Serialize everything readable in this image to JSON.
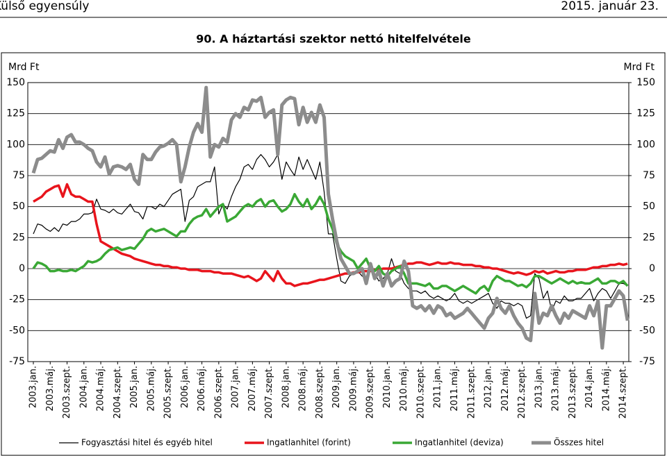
{
  "header": {
    "section": "Külső egyensúly",
    "date": "2015. január 23."
  },
  "chart_data": {
    "type": "line",
    "title": "90. A háztartási szektor nettó hitelfelvétele",
    "y_label": "Mrd Ft",
    "y2_label": "Mrd Ft",
    "categories": [
      "2003.jan.",
      null,
      null,
      null,
      "2003.máj.",
      null,
      null,
      null,
      "2003.szept.",
      null,
      null,
      null,
      "2004.jan.",
      null,
      null,
      null,
      "2004.máj.",
      null,
      null,
      null,
      "2004.szept.",
      null,
      null,
      null,
      "2005.jan.",
      null,
      null,
      null,
      "2005.máj.",
      null,
      null,
      null,
      "2005.szept.",
      null,
      null,
      null,
      "2006.jan.",
      null,
      null,
      null,
      "2006.máj.",
      null,
      null,
      null,
      "2006.szept.",
      null,
      null,
      null,
      "2007.jan.",
      null,
      null,
      null,
      "2007.máj.",
      null,
      null,
      null,
      "2007.szept.",
      null,
      null,
      null,
      "2008.jan.",
      null,
      null,
      null,
      "2008.máj.",
      null,
      null,
      null,
      "2008.szept.",
      null,
      null,
      null,
      "2009.jan.",
      null,
      null,
      null,
      "2009.máj.",
      null,
      null,
      null,
      "2009.szept.",
      null,
      null,
      null,
      "2010.jan.",
      null,
      null,
      null,
      "2010.máj.",
      null,
      null,
      null,
      "2010.szept.",
      null,
      null,
      null,
      "2011.jan.",
      null,
      null,
      null,
      "2011.máj.",
      null,
      null,
      null,
      "2011.szept.",
      null,
      null,
      null,
      "2012.jan.",
      null,
      null,
      null,
      "2012.máj.",
      null,
      null,
      null,
      "2012.szept.",
      null,
      null,
      null,
      "2013.jan.",
      null,
      null,
      null,
      "2013.máj.",
      null,
      null,
      null,
      "2013.szept.",
      null,
      null,
      null,
      "2014.jan.",
      null,
      null,
      null,
      "2014.máj.",
      null,
      null,
      null,
      "2014.szept.",
      null
    ],
    "series": [
      {
        "name": "Fogyasztási hitel és egyéb hitel",
        "color": "#000000",
        "width": 1.2,
        "values": [
          28,
          36,
          35,
          32,
          30,
          33,
          30,
          36,
          35,
          38,
          38,
          40,
          44,
          44,
          45,
          56,
          48,
          47,
          45,
          48,
          45,
          44,
          48,
          52,
          46,
          45,
          40,
          50,
          50,
          48,
          52,
          50,
          55,
          60,
          62,
          64,
          38,
          55,
          58,
          66,
          68,
          70,
          70,
          82,
          44,
          52,
          48,
          58,
          66,
          72,
          82,
          84,
          80,
          88,
          92,
          88,
          82,
          86,
          92,
          72,
          86,
          80,
          75,
          90,
          80,
          88,
          80,
          72,
          86,
          62,
          28,
          28,
          8,
          -10,
          -12,
          -6,
          -4,
          -2,
          -6,
          -8,
          0,
          -4,
          -10,
          -8,
          -4,
          8,
          -2,
          -4,
          -12,
          -16,
          -18,
          -18,
          -20,
          -18,
          -22,
          -24,
          -22,
          -24,
          -26,
          -24,
          -20,
          -26,
          -28,
          -26,
          -28,
          -26,
          -24,
          -22,
          -20,
          -28,
          -32,
          -26,
          -28,
          -28,
          -30,
          -28,
          -30,
          -40,
          -38,
          -4,
          -8,
          -24,
          -18,
          -34,
          -26,
          -28,
          -22,
          -26,
          -26,
          -24,
          -24,
          -20,
          -16,
          -26,
          -20,
          -16,
          -18,
          -24,
          -18,
          -12,
          -12,
          -14
        ]
      },
      {
        "name": "Ingatlanhitel (forint)",
        "color": "#e8141c",
        "width": 3.5,
        "values": [
          54,
          56,
          58,
          62,
          64,
          66,
          67,
          58,
          68,
          60,
          58,
          58,
          56,
          54,
          54,
          36,
          22,
          20,
          18,
          16,
          14,
          12,
          11,
          10,
          8,
          7,
          6,
          5,
          4,
          3,
          3,
          2,
          2,
          1,
          1,
          0,
          0,
          -1,
          -1,
          -1,
          -2,
          -2,
          -2,
          -3,
          -3,
          -4,
          -4,
          -4,
          -5,
          -6,
          -7,
          -6,
          -8,
          -10,
          -8,
          -2,
          -6,
          -10,
          -2,
          -8,
          -12,
          -12,
          -14,
          -13,
          -12,
          -12,
          -11,
          -10,
          -9,
          -9,
          -8,
          -7,
          -6,
          -5,
          -4,
          -4,
          -3,
          -3,
          -2,
          -2,
          -2,
          -1,
          -1,
          0,
          0,
          0,
          1,
          2,
          3,
          4,
          4,
          5,
          5,
          4,
          3,
          4,
          5,
          4,
          4,
          5,
          4,
          4,
          3,
          3,
          3,
          2,
          2,
          1,
          1,
          0,
          0,
          -1,
          -2,
          -3,
          -4,
          -3,
          -4,
          -5,
          -4,
          -2,
          -3,
          -2,
          -4,
          -3,
          -2,
          -3,
          -3,
          -2,
          -2,
          -1,
          -1,
          -1,
          0,
          1,
          1,
          2,
          2,
          3,
          3,
          4,
          3,
          4
        ]
      },
      {
        "name": "Ingatlanhitel (deviza)",
        "color": "#3aa835",
        "width": 3.5,
        "values": [
          0,
          5,
          4,
          2,
          -2,
          -2,
          -1,
          -2,
          -2,
          -1,
          -2,
          0,
          2,
          6,
          5,
          6,
          8,
          12,
          15,
          16,
          17,
          15,
          16,
          17,
          16,
          20,
          24,
          30,
          32,
          30,
          31,
          32,
          30,
          28,
          26,
          30,
          30,
          36,
          40,
          42,
          43,
          48,
          42,
          46,
          50,
          52,
          38,
          40,
          42,
          46,
          50,
          52,
          50,
          54,
          56,
          50,
          54,
          55,
          50,
          46,
          48,
          52,
          60,
          54,
          50,
          56,
          48,
          52,
          58,
          52,
          40,
          32,
          20,
          14,
          10,
          8,
          6,
          0,
          4,
          8,
          0,
          -2,
          2,
          -4,
          -6,
          -2,
          0,
          2,
          -4,
          -12,
          -12,
          -12,
          -13,
          -14,
          -12,
          -16,
          -16,
          -14,
          -14,
          -16,
          -18,
          -16,
          -14,
          -16,
          -18,
          -20,
          -16,
          -14,
          -18,
          -10,
          -6,
          -8,
          -10,
          -10,
          -12,
          -14,
          -13,
          -15,
          -12,
          -6,
          -6,
          -8,
          -10,
          -12,
          -10,
          -8,
          -10,
          -12,
          -10,
          -12,
          -11,
          -12,
          -12,
          -10,
          -8,
          -12,
          -12,
          -10,
          -10,
          -12,
          -10,
          -14
        ]
      },
      {
        "name": "Összes hitel",
        "color": "#8c8c8c",
        "width": 5,
        "values": [
          77,
          88,
          89,
          92,
          95,
          94,
          104,
          97,
          106,
          108,
          102,
          102,
          100,
          97,
          95,
          86,
          82,
          90,
          76,
          82,
          83,
          82,
          80,
          84,
          72,
          68,
          92,
          88,
          88,
          94,
          98,
          99,
          101,
          104,
          100,
          70,
          82,
          98,
          110,
          117,
          110,
          146,
          90,
          100,
          98,
          105,
          102,
          120,
          125,
          122,
          130,
          128,
          136,
          135,
          138,
          122,
          126,
          128,
          92,
          132,
          136,
          138,
          137,
          116,
          130,
          118,
          126,
          118,
          132,
          122,
          60,
          40,
          22,
          8,
          2,
          -4,
          -4,
          -2,
          0,
          -12,
          4,
          -8,
          -2,
          -14,
          -4,
          -14,
          -10,
          -8,
          6,
          -2,
          -30,
          -32,
          -30,
          -34,
          -30,
          -36,
          -30,
          -32,
          -38,
          -36,
          -40,
          -38,
          -36,
          -32,
          -36,
          -40,
          -44,
          -48,
          -40,
          -36,
          -24,
          -32,
          -36,
          -30,
          -38,
          -44,
          -48,
          -56,
          -58,
          -20,
          -44,
          -36,
          -38,
          -30,
          -38,
          -44,
          -36,
          -40,
          -34,
          -36,
          -38,
          -40,
          -30,
          -38,
          -26,
          -64,
          -30,
          -30,
          -24,
          -18,
          -22,
          -42
        ]
      }
    ],
    "ylim": [
      -75,
      150
    ],
    "yticks": [
      -75,
      -50,
      -25,
      0,
      25,
      50,
      75,
      100,
      125,
      150
    ],
    "y2lim": [
      -75,
      150
    ],
    "y2ticks": [
      -75,
      -50,
      -25,
      0,
      25,
      50,
      75,
      100,
      125,
      150
    ],
    "grid": true,
    "legend": "bottom"
  }
}
